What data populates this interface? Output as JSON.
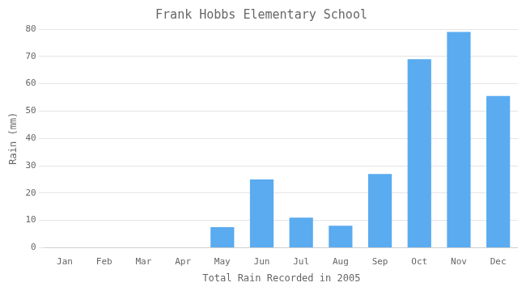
{
  "chart_data": {
    "type": "bar",
    "title": "Frank Hobbs Elementary School",
    "xlabel": "Total Rain Recorded in 2005",
    "ylabel": "Rain (mm)",
    "categories": [
      "Jan",
      "Feb",
      "Mar",
      "Apr",
      "May",
      "Jun",
      "Jul",
      "Aug",
      "Sep",
      "Oct",
      "Nov",
      "Dec"
    ],
    "values": [
      0,
      0,
      0,
      0,
      7.5,
      25,
      11,
      8,
      27,
      69,
      79,
      55.5
    ],
    "color": "#5aabf0",
    "ylim": [
      0,
      80
    ],
    "yticks": [
      0,
      10,
      20,
      30,
      40,
      50,
      60,
      70,
      80
    ],
    "grid": true
  }
}
